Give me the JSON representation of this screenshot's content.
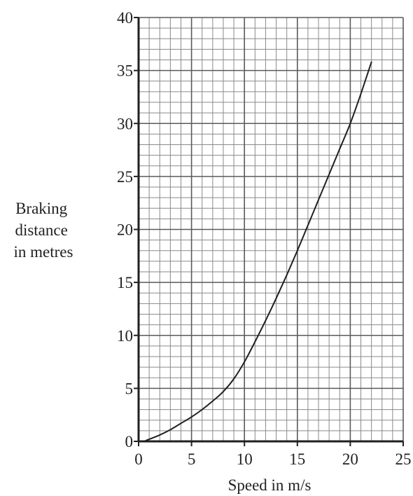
{
  "chart_data": {
    "type": "line",
    "title": "",
    "xlabel": "Speed in m/s",
    "ylabel_lines": [
      "Braking",
      "distance",
      "in metres"
    ],
    "xlim": [
      0,
      25
    ],
    "ylim": [
      0,
      40
    ],
    "xticks": [
      0,
      5,
      10,
      15,
      20,
      25
    ],
    "yticks": [
      0,
      5,
      10,
      15,
      20,
      25,
      30,
      35,
      40
    ],
    "grid": true,
    "minor_grid_x_step": 1,
    "minor_grid_y_step": 1,
    "major_grid_x_step": 5,
    "major_grid_y_step": 5,
    "colors": {
      "grid_minor": "#8a8a8a",
      "grid_major": "#5a5a5a",
      "axis": "#231f20",
      "curve": "#231f20"
    },
    "series": [
      {
        "x": [
          0.5,
          1,
          2,
          3,
          4,
          5,
          6,
          7,
          8,
          9,
          10,
          11,
          12,
          13,
          14,
          15,
          16,
          17,
          18,
          19,
          20,
          21,
          22
        ],
        "y": [
          0,
          0.2,
          0.6,
          1.1,
          1.7,
          2.3,
          3.0,
          3.8,
          4.7,
          5.9,
          7.5,
          9.4,
          11.4,
          13.5,
          15.7,
          18.0,
          20.4,
          22.8,
          25.2,
          27.6,
          30.0,
          32.8,
          35.8
        ]
      }
    ]
  }
}
